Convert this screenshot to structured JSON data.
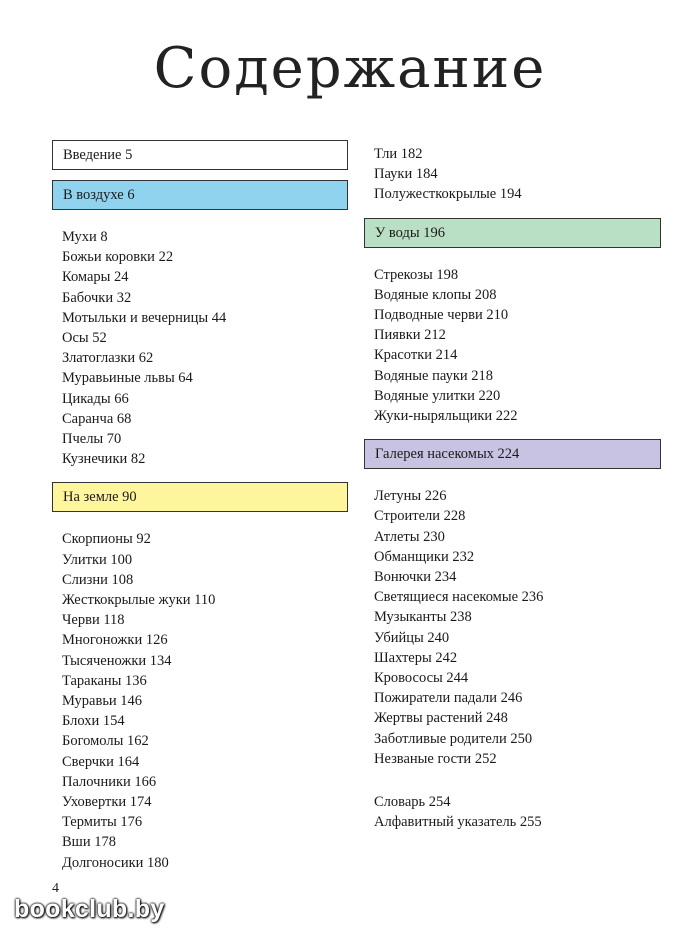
{
  "title": "Содержание",
  "colors": {
    "intro_box": "#ffffff",
    "air_box": "#8fd3ef",
    "ground_box": "#fff59d",
    "water_box": "#b9dfc4",
    "gallery_box": "#c9c3e3",
    "text": "#1a1a1a"
  },
  "left": {
    "intro": "Введение 5",
    "air": {
      "label": "В воздухе 6",
      "items": [
        "Мухи 8",
        "Божьи коровки 22",
        "Комары 24",
        "Бабочки 32",
        "Мотыльки и вечерницы 44",
        "Осы 52",
        "Златоглазки 62",
        "Муравьиные львы 64",
        "Цикады 66",
        "Саранча 68",
        "Пчелы 70",
        "Кузнечики 82"
      ]
    },
    "ground": {
      "label": "На земле 90",
      "items": [
        "Скорпионы 92",
        "Улитки 100",
        "Слизни 108",
        "Жесткокрылые жуки 110",
        "Черви 118",
        "Многоножки 126",
        "Тысяченожки 134",
        "Тараканы 136",
        "Муравьи 146",
        "Блохи 154",
        "Богомолы 162",
        "Сверчки 164",
        "Палочники 166",
        "Уховертки 174",
        "Термиты 176",
        "Вши 178",
        "Долгоносики 180"
      ]
    }
  },
  "right": {
    "ground_cont": [
      "Тли 182",
      "Пауки 184",
      "Полужесткокрылые 194"
    ],
    "water": {
      "label": "У воды 196",
      "items": [
        "Стрекозы 198",
        "Водяные клопы 208",
        "Подводные черви 210",
        "Пиявки 212",
        "Красотки 214",
        "Водяные пауки 218",
        "Водяные улитки 220",
        "Жуки-ныряльщики 222"
      ]
    },
    "gallery": {
      "label": "Галерея насекомых 224",
      "items": [
        "Летуны 226",
        "Строители 228",
        "Атлеты 230",
        "Обманщики 232",
        "Вонючки 234",
        "Светящиеся насекомые 236",
        "Музыканты 238",
        "Убийцы 240",
        "Шахтеры 242",
        "Кровососы 244",
        "Пожиратели падали 246",
        "Жертвы растений 248",
        "Заботливые родители 250",
        "Незваные гости 252"
      ]
    },
    "back": [
      "Словарь 254",
      "Алфавитный указатель 255"
    ]
  },
  "page_number": "4",
  "watermark": "bookclub.by"
}
